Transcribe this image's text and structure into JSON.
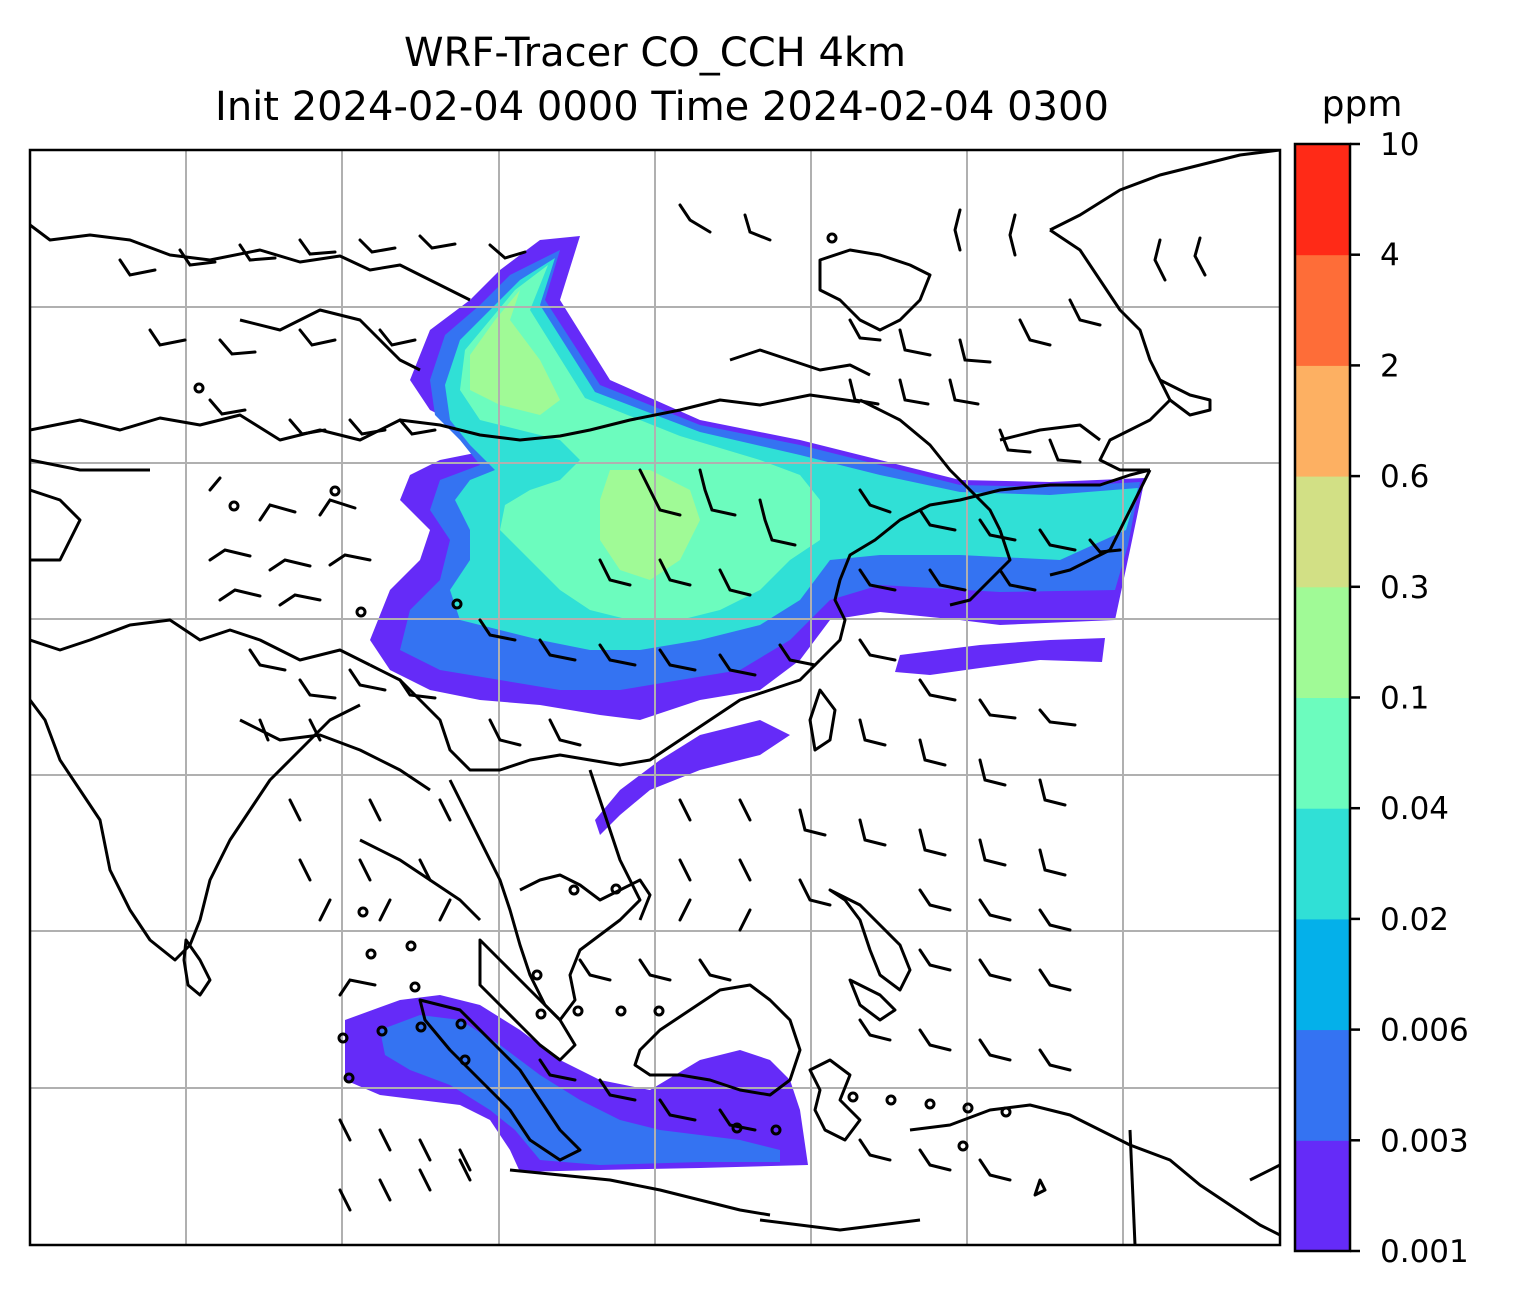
{
  "chart_data": {
    "type": "heatmap",
    "title": "WRF-Tracer CO_CCH 4km",
    "subtitle": "Init 2024-02-04 0000 Time 2024-02-04 0300",
    "colorbar": {
      "unit": "ppm",
      "levels": [
        "0.001",
        "0.003",
        "0.006",
        "0.02",
        "0.04",
        "0.1",
        "0.3",
        "0.6",
        "2",
        "4",
        "10"
      ],
      "colors": [
        "#652bf8",
        "#3473f2",
        "#04b0ea",
        "#30e0d6",
        "#6cfcbe",
        "#a0fa96",
        "#d2e085",
        "#fdb062",
        "#fe6d38",
        "#ff2a17"
      ]
    },
    "gridlines": true,
    "overlays": [
      "coastlines",
      "country borders",
      "wind barbs"
    ],
    "colors": {
      "frame": "#000000",
      "grid": "#b0b0b0",
      "coast": "#000000"
    }
  }
}
